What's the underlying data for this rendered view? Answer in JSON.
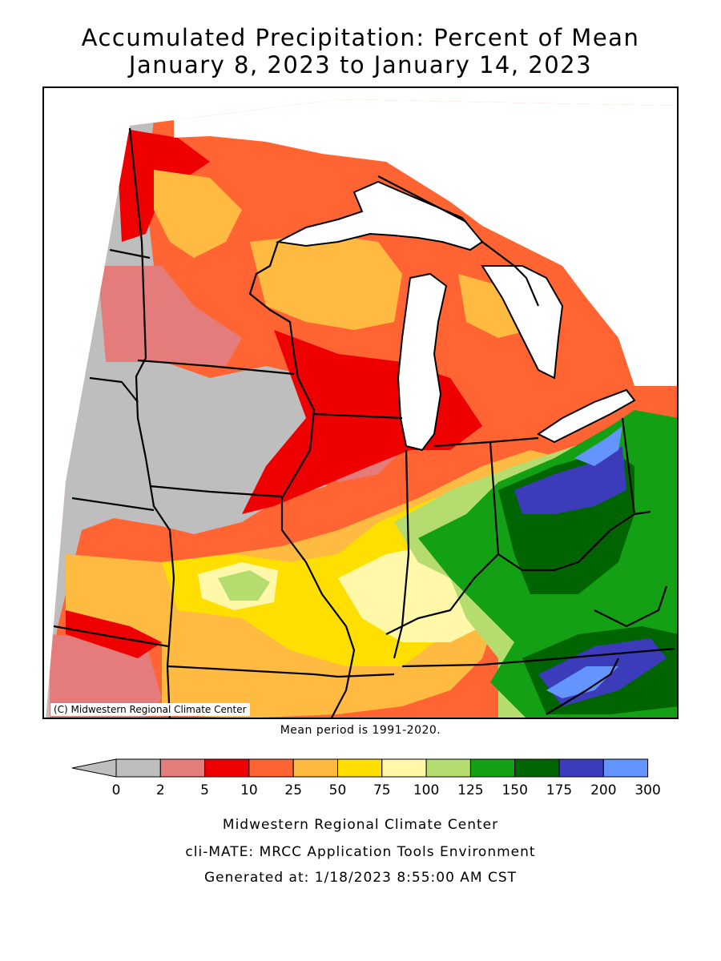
{
  "title": {
    "line1": "Accumulated Precipitation: Percent of Mean",
    "line2": "January 8, 2023 to January 14, 2023"
  },
  "map": {
    "copyright": "(C) Midwestern Regional Climate Center",
    "region": "Midwest US",
    "projection": "Lambert conformal",
    "states": [
      "Minnesota",
      "Iowa",
      "Missouri",
      "Wisconsin",
      "Illinois",
      "Michigan",
      "Indiana",
      "Ohio",
      "Kentucky"
    ]
  },
  "mean_period": "Mean period is 1991-2020.",
  "legend": {
    "ticks": [
      "0",
      "2",
      "5",
      "10",
      "25",
      "50",
      "75",
      "100",
      "125",
      "150",
      "175",
      "200",
      "300"
    ],
    "colors": [
      "#bebebe",
      "#e47c7c",
      "#ee0000",
      "#ff6432",
      "#ffbb41",
      "#ffdf00",
      "#fff8a8",
      "#b4dc6e",
      "#14a014",
      "#006400",
      "#3c3cbb",
      "#6495ff"
    ],
    "underflow_color": "#bebebe"
  },
  "footer": {
    "line1": "Midwestern Regional Climate Center",
    "line2": "cli-MATE: MRCC Application Tools Environment",
    "line3": "Generated at: 1/18/2023 8:55:00 AM CST"
  }
}
